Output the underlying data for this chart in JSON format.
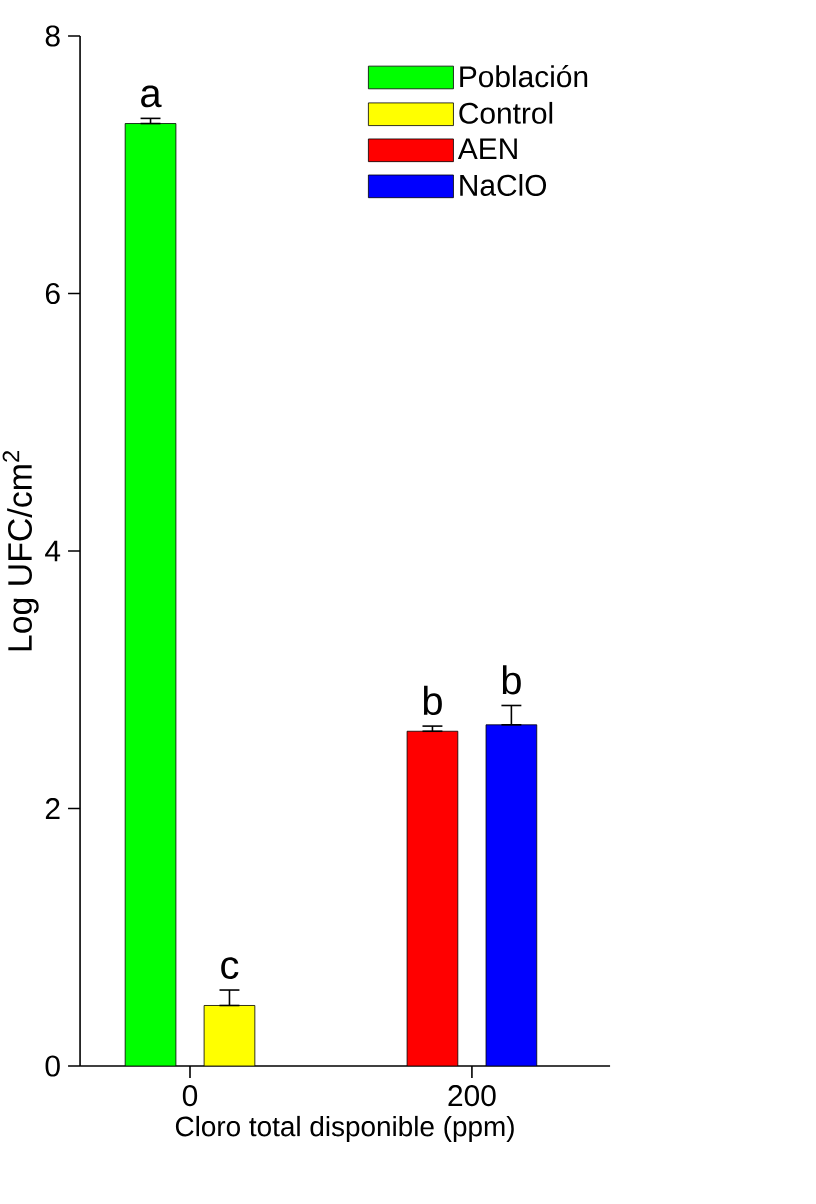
{
  "chart_data": {
    "type": "bar",
    "ylabel": "Log UFC/cm$^{2}$",
    "xlabel": "Cloro total disponible (ppm)",
    "categories": [
      "0",
      "200"
    ],
    "series": [
      {
        "name": "Población",
        "color": "#00ff00",
        "values": [
          7.32,
          null
        ],
        "errors": [
          [
            7.32,
            7.36
          ],
          null
        ]
      },
      {
        "name": "Control",
        "color": "#ffff00",
        "values": [
          0.47,
          null
        ],
        "errors": [
          [
            0.47,
            0.59
          ],
          null
        ]
      },
      {
        "name": "AEN",
        "color": "#ff0000",
        "values": [
          null,
          2.6
        ],
        "errors": [
          null,
          [
            2.6,
            2.64
          ]
        ]
      },
      {
        "name": "NaClO",
        "color": "#0000ff",
        "values": [
          null,
          2.65
        ],
        "errors": [
          null,
          [
            2.65,
            2.8
          ]
        ]
      }
    ],
    "ylim": [
      0,
      8
    ],
    "yticks": [
      0,
      2,
      4,
      6,
      8
    ],
    "legend": "top right",
    "grid": false,
    "annotations": [
      "a",
      "c",
      "b",
      "b"
    ]
  }
}
